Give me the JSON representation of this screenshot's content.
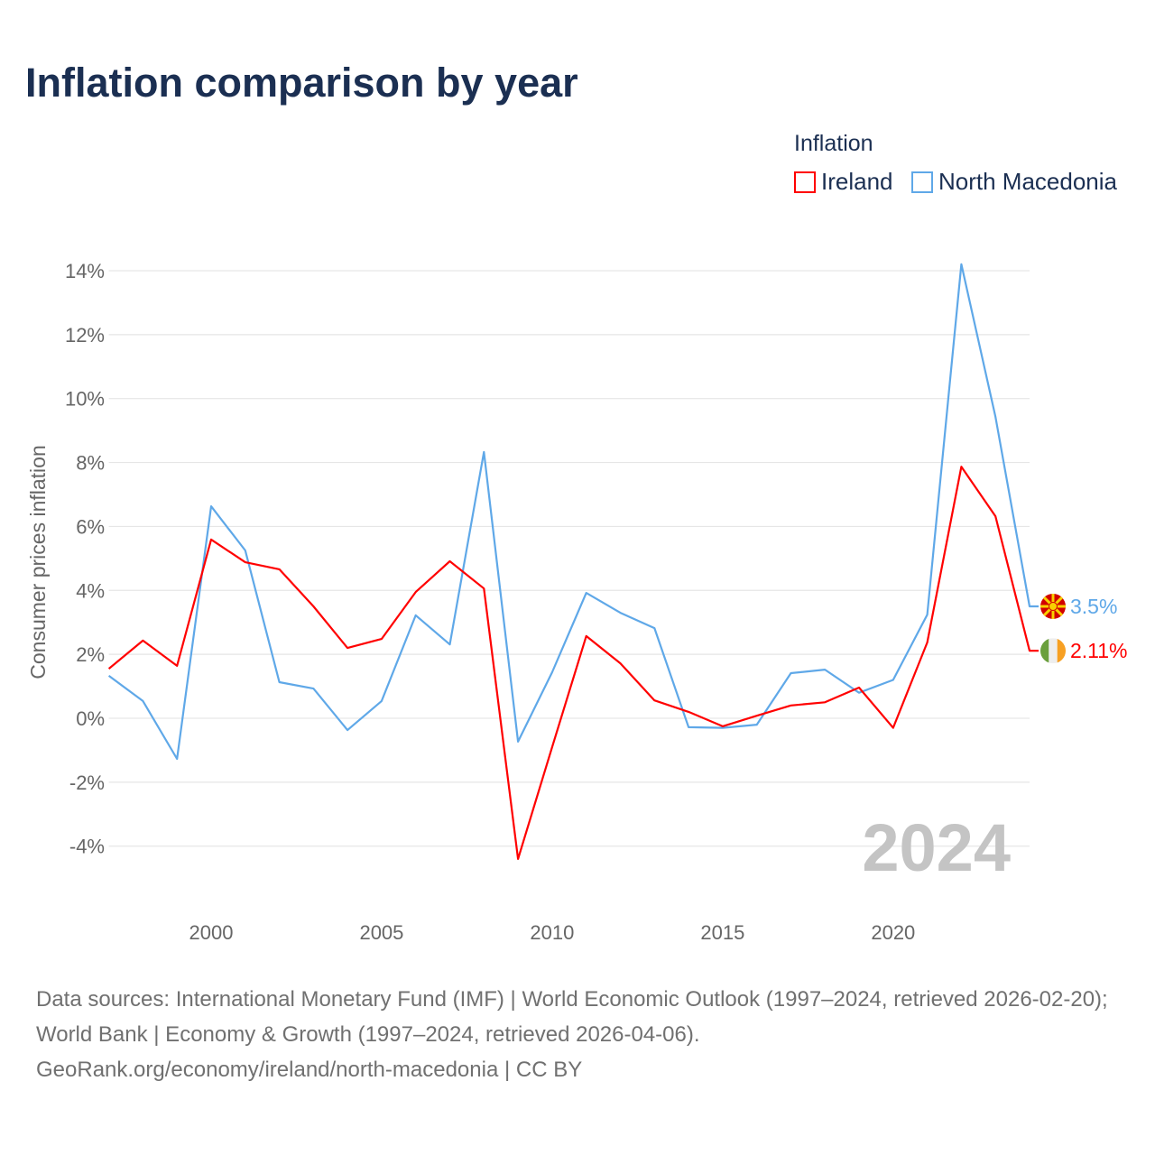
{
  "title": "Inflation comparison by year",
  "legend": {
    "title": "Inflation",
    "items": [
      {
        "label": "Ireland",
        "color": "#ff0000"
      },
      {
        "label": "North Macedonia",
        "color": "#5fa8e8"
      }
    ]
  },
  "sources": {
    "line1": "Data sources: International Monetary Fund (IMF) | World Economic Outlook (1997–2024, retrieved 2026-02-20); World Bank | Economy & Growth (1997–2024, retrieved 2026-04-06).",
    "line2": "GeoRank.org/economy/ireland/north-macedonia | CC BY"
  },
  "chart_data": {
    "type": "line",
    "title": "Inflation comparison by year",
    "xlabel": "",
    "ylabel": "Consumer prices inflation",
    "ylim": [
      -5,
      14.5
    ],
    "xlim": [
      1997,
      2024
    ],
    "yticks": [
      -4,
      -2,
      0,
      2,
      4,
      6,
      8,
      10,
      12,
      14
    ],
    "ytick_labels": [
      "-4%",
      "-2%",
      "0%",
      "2%",
      "4%",
      "6%",
      "8%",
      "10%",
      "12%",
      "14%"
    ],
    "xticks": [
      2000,
      2005,
      2010,
      2015,
      2020
    ],
    "xtick_labels": [
      "2000",
      "2005",
      "2010",
      "2015",
      "2020"
    ],
    "grid": true,
    "watermark_year": "2024",
    "x": [
      1997,
      1998,
      1999,
      2000,
      2001,
      2002,
      2003,
      2004,
      2005,
      2006,
      2007,
      2008,
      2009,
      2010,
      2011,
      2012,
      2013,
      2014,
      2015,
      2016,
      2017,
      2018,
      2019,
      2020,
      2021,
      2022,
      2023,
      2024
    ],
    "series": [
      {
        "name": "Ireland",
        "color": "#ff0000",
        "end_label": "2.11%",
        "flag": "ireland-flag",
        "values": [
          1.55,
          2.43,
          1.64,
          5.59,
          4.88,
          4.66,
          3.5,
          2.2,
          2.48,
          3.95,
          4.91,
          4.06,
          -4.4,
          -0.9,
          2.57,
          1.72,
          0.56,
          0.2,
          -0.25,
          0.08,
          0.4,
          0.5,
          0.96,
          -0.3,
          2.37,
          7.87,
          6.32,
          2.11
        ]
      },
      {
        "name": "North Macedonia",
        "color": "#5fa8e8",
        "end_label": "3.5%",
        "flag": "north-macedonia-flag",
        "values": [
          1.33,
          0.54,
          -1.27,
          6.63,
          5.25,
          1.13,
          0.93,
          -0.37,
          0.54,
          3.22,
          2.31,
          8.33,
          -0.73,
          1.44,
          3.92,
          3.3,
          2.82,
          -0.28,
          -0.3,
          -0.2,
          1.41,
          1.52,
          0.8,
          1.2,
          3.24,
          14.2,
          9.43,
          3.5
        ]
      }
    ]
  }
}
